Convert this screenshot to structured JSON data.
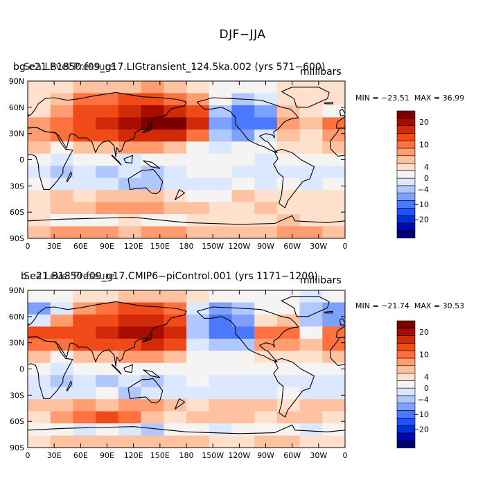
{
  "figure": {
    "title": "DJF−JJA"
  },
  "chart_data": [
    {
      "type": "heatmap",
      "title_left": "bg.e21.B1850.f09_g17.LIGtransient_124.5ka.002  (yrs 571−600)",
      "title_left_overprint": "Sea Level Pressure",
      "units": "millibars",
      "min_label": "MIN = −23.51",
      "max_label": "MAX =  36.99",
      "min": -23.51,
      "max": 36.99,
      "xlabels": [
        "0",
        "30E",
        "60E",
        "90E",
        "120E",
        "150E",
        "180",
        "150W",
        "120W",
        "90W",
        "60W",
        "30W",
        "0"
      ],
      "ylabels": [
        "90N",
        "60N",
        "30N",
        "0",
        "30S",
        "60S",
        "90S"
      ],
      "colorbar_labels": [
        "20",
        "10",
        "4",
        "0",
        "−4",
        "−10",
        "−20"
      ],
      "cells": [
        [
          1,
          1,
          2,
          2,
          3,
          4,
          3,
          1,
          -1,
          -1,
          -1,
          0,
          1,
          0
        ],
        [
          1,
          3,
          6,
          7,
          8,
          8,
          7,
          5,
          -2,
          -5,
          -4,
          1,
          0,
          1
        ],
        [
          1,
          5,
          8,
          10,
          13,
          16,
          15,
          9,
          -6,
          -9,
          -7,
          3,
          0,
          -1
        ],
        [
          5,
          7,
          10,
          13,
          18,
          23,
          20,
          12,
          -8,
          -11,
          -9,
          4,
          2,
          6
        ],
        [
          4,
          6,
          8,
          9,
          12,
          15,
          12,
          6,
          -5,
          -7,
          -4,
          3,
          0,
          5
        ],
        [
          2,
          -2,
          2,
          3,
          4,
          5,
          3,
          -1,
          -3,
          -2,
          -1,
          1,
          1,
          2
        ],
        [
          -1,
          -4,
          -2,
          -1,
          -3,
          -1,
          -2,
          -1,
          -1,
          -1,
          -3,
          -2,
          -1,
          -1
        ],
        [
          -3,
          -6,
          -3,
          -5,
          -4,
          -5,
          -3,
          -2,
          -2,
          -3,
          -4,
          -3,
          -4,
          -3
        ],
        [
          -2,
          -3,
          -4,
          -3,
          -6,
          -5,
          -4,
          -3,
          -3,
          -2,
          -4,
          -2,
          -3,
          -2
        ],
        [
          1,
          2,
          1,
          2,
          3,
          2,
          1,
          -1,
          -1,
          2,
          1,
          1,
          1,
          1
        ],
        [
          1,
          2,
          3,
          4,
          5,
          4,
          3,
          2,
          1,
          0,
          2,
          1,
          1,
          1
        ],
        [
          1,
          -1,
          -2,
          -2,
          1,
          -2,
          -2,
          1,
          1,
          1,
          1,
          2,
          1,
          1
        ],
        [
          3,
          4,
          5,
          4,
          3,
          4,
          4,
          3,
          2,
          3,
          3,
          4,
          5,
          3
        ]
      ]
    },
    {
      "type": "heatmap",
      "title_left": "b.e21.B1850.f09_g17.CMIP6−piControl.001  (yrs 1171−1200)",
      "title_left_overprint": "Sea Level Pressure",
      "units": "millibars",
      "min_label": "MIN = −21.74",
      "max_label": "MAX =  30.53",
      "min": -21.74,
      "max": 30.53,
      "xlabels": [
        "0",
        "30E",
        "60E",
        "90E",
        "120E",
        "150E",
        "180",
        "150W",
        "120W",
        "90W",
        "60W",
        "30W",
        "0"
      ],
      "ylabels": [
        "90N",
        "60N",
        "30N",
        "0",
        "30S",
        "60S",
        "90S"
      ],
      "colorbar_labels": [
        "20",
        "10",
        "4",
        "0",
        "−4",
        "−10",
        "−20"
      ],
      "cells": [
        [
          -2,
          -1,
          0,
          1,
          2,
          3,
          2,
          0,
          -1,
          -1,
          -2,
          -2,
          -3,
          -2
        ],
        [
          -7,
          -4,
          5,
          6,
          8,
          9,
          6,
          -3,
          -8,
          -6,
          -2,
          -2,
          -6,
          -8
        ],
        [
          -3,
          5,
          8,
          11,
          13,
          14,
          9,
          -6,
          -12,
          -8,
          1,
          2,
          -5,
          -7
        ],
        [
          8,
          9,
          11,
          14,
          17,
          19,
          13,
          -6,
          -12,
          -9,
          7,
          6,
          -2,
          7
        ],
        [
          6,
          6,
          8,
          9,
          11,
          12,
          9,
          -3,
          -6,
          -5,
          5,
          4,
          2,
          6
        ],
        [
          3,
          -2,
          3,
          3,
          4,
          5,
          3,
          -1,
          -2,
          -2,
          1,
          1,
          1,
          3
        ],
        [
          -2,
          -4,
          -2,
          -1,
          -2,
          -1,
          -2,
          -1,
          -1,
          -2,
          -2,
          -2,
          -2,
          -2
        ],
        [
          -3,
          -6,
          -4,
          -5,
          -3,
          -5,
          -4,
          -2,
          -3,
          -3,
          -3,
          -3,
          -4,
          -3
        ],
        [
          -3,
          -3,
          -3,
          -2,
          -5,
          -4,
          -3,
          -4,
          -3,
          -3,
          -3,
          -2,
          -3,
          -3
        ],
        [
          2,
          3,
          4,
          3,
          5,
          4,
          2,
          1,
          2,
          3,
          2,
          1,
          2,
          2
        ],
        [
          1,
          4,
          7,
          8,
          6,
          3,
          1,
          2,
          3,
          2,
          1,
          2,
          3,
          1
        ],
        [
          -1,
          -2,
          -3,
          -2,
          -4,
          -5,
          -2,
          -2,
          -3,
          -1,
          -1,
          -2,
          -3,
          -1
        ],
        [
          1,
          2,
          2,
          3,
          2,
          2,
          3,
          2,
          1,
          1,
          2,
          2,
          1,
          1
        ]
      ]
    }
  ]
}
